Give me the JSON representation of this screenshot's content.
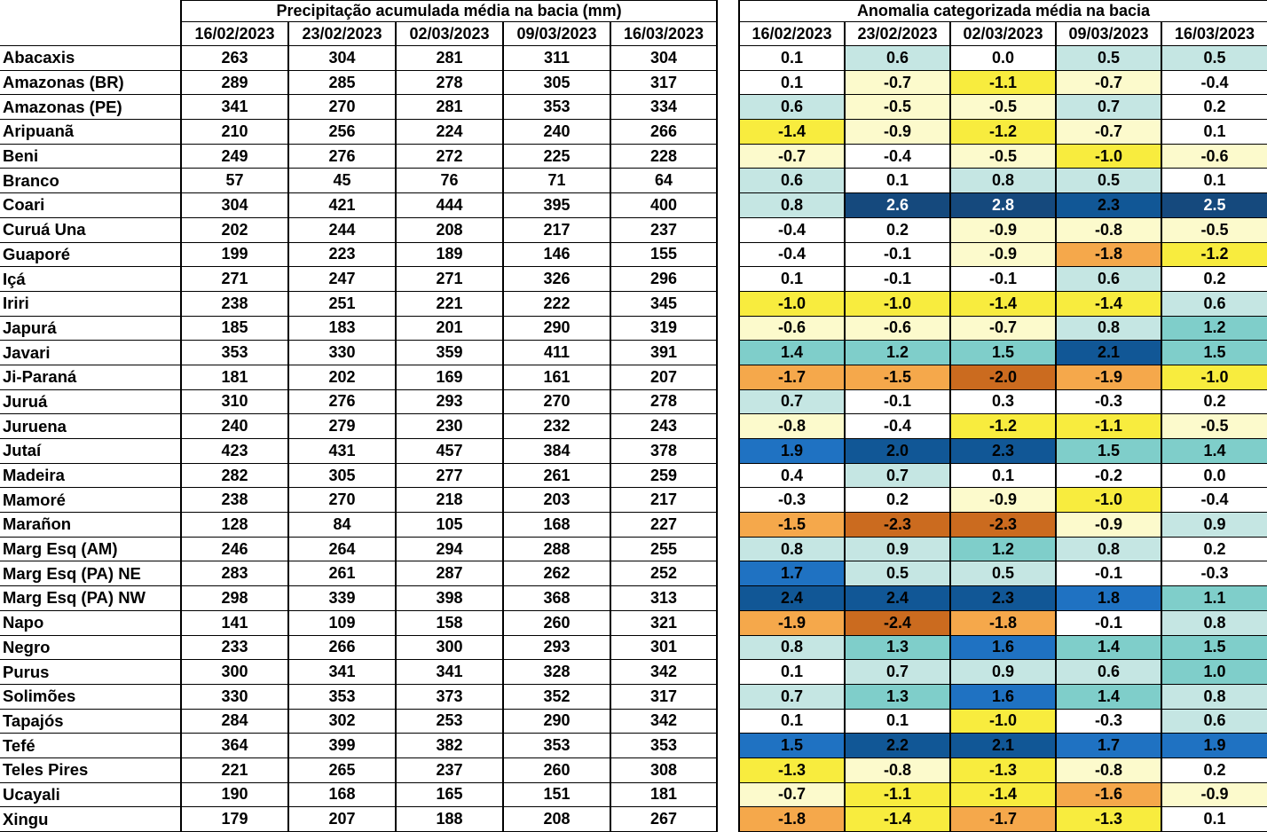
{
  "chart_data": {
    "type": "heatmap-table",
    "columns": [
      "16/02/2023",
      "23/02/2023",
      "02/03/2023",
      "09/03/2023",
      "16/03/2023"
    ],
    "left": {
      "title": "Precipitação acumulada média na bacia (mm)",
      "unit": "mm"
    },
    "right": {
      "title": "Anomalia categorizada média na bacia"
    },
    "rows": [
      {
        "basin": "Abacaxis",
        "precip": [
          263,
          304,
          281,
          311,
          304
        ],
        "anomaly": [
          0.1,
          0.6,
          0.0,
          0.5,
          0.5
        ],
        "anomaly_cats": [
          "c0",
          "p1",
          "c0",
          "p1",
          "p1"
        ]
      },
      {
        "basin": "Amazonas (BR)",
        "precip": [
          289,
          285,
          278,
          305,
          317
        ],
        "anomaly": [
          0.1,
          -0.7,
          -1.1,
          -0.7,
          -0.4
        ],
        "anomaly_cats": [
          "c0",
          "n1",
          "n2",
          "n1",
          "c0"
        ]
      },
      {
        "basin": "Amazonas (PE)",
        "precip": [
          341,
          270,
          281,
          353,
          334
        ],
        "anomaly": [
          0.6,
          -0.5,
          -0.5,
          0.7,
          0.2
        ],
        "anomaly_cats": [
          "p1",
          "n1",
          "n1",
          "p1",
          "c0"
        ]
      },
      {
        "basin": "Aripuanã",
        "precip": [
          210,
          256,
          224,
          240,
          266
        ],
        "anomaly": [
          -1.4,
          -0.9,
          -1.2,
          -0.7,
          0.1
        ],
        "anomaly_cats": [
          "n2",
          "n1",
          "n2",
          "n1",
          "c0"
        ]
      },
      {
        "basin": "Beni",
        "precip": [
          249,
          276,
          272,
          225,
          228
        ],
        "anomaly": [
          -0.7,
          -0.4,
          -0.5,
          -1.0,
          -0.6
        ],
        "anomaly_cats": [
          "n1",
          "c0",
          "n1",
          "n2",
          "n1"
        ]
      },
      {
        "basin": "Branco",
        "precip": [
          57,
          45,
          76,
          71,
          64
        ],
        "anomaly": [
          0.6,
          0.1,
          0.8,
          0.5,
          0.1
        ],
        "anomaly_cats": [
          "p1",
          "c0",
          "p1",
          "p1",
          "c0"
        ]
      },
      {
        "basin": "Coari",
        "precip": [
          304,
          421,
          444,
          395,
          400
        ],
        "anomaly": [
          0.8,
          2.6,
          2.8,
          2.3,
          2.5
        ],
        "anomaly_cats": [
          "p1",
          "p5",
          "p5",
          "p4",
          "p5"
        ]
      },
      {
        "basin": "Curuá Una",
        "precip": [
          202,
          244,
          208,
          217,
          237
        ],
        "anomaly": [
          -0.4,
          0.2,
          -0.9,
          -0.8,
          -0.5
        ],
        "anomaly_cats": [
          "c0",
          "c0",
          "n1",
          "n1",
          "n1"
        ]
      },
      {
        "basin": "Guaporé",
        "precip": [
          199,
          223,
          189,
          146,
          155
        ],
        "anomaly": [
          -0.4,
          -0.1,
          -0.9,
          -1.8,
          -1.2
        ],
        "anomaly_cats": [
          "c0",
          "c0",
          "n1",
          "n3",
          "n2"
        ]
      },
      {
        "basin": "Içá",
        "precip": [
          271,
          247,
          271,
          326,
          296
        ],
        "anomaly": [
          0.1,
          -0.1,
          -0.1,
          0.6,
          0.2
        ],
        "anomaly_cats": [
          "c0",
          "c0",
          "c0",
          "p1",
          "c0"
        ]
      },
      {
        "basin": "Iriri",
        "precip": [
          238,
          251,
          221,
          222,
          345
        ],
        "anomaly": [
          -1.0,
          -1.0,
          -1.4,
          -1.4,
          0.6
        ],
        "anomaly_cats": [
          "n2",
          "n2",
          "n2",
          "n2",
          "p1"
        ]
      },
      {
        "basin": "Japurá",
        "precip": [
          185,
          183,
          201,
          290,
          319
        ],
        "anomaly": [
          -0.6,
          -0.6,
          -0.7,
          0.8,
          1.2
        ],
        "anomaly_cats": [
          "n1",
          "n1",
          "n1",
          "p1",
          "p2"
        ]
      },
      {
        "basin": "Javari",
        "precip": [
          353,
          330,
          359,
          411,
          391
        ],
        "anomaly": [
          1.4,
          1.2,
          1.5,
          2.1,
          1.5
        ],
        "anomaly_cats": [
          "p2",
          "p2",
          "p2",
          "p4",
          "p2"
        ]
      },
      {
        "basin": "Ji-Paraná",
        "precip": [
          181,
          202,
          169,
          161,
          207
        ],
        "anomaly": [
          -1.7,
          -1.5,
          -2.0,
          -1.9,
          -1.0
        ],
        "anomaly_cats": [
          "n3",
          "n3",
          "n4",
          "n3",
          "n2"
        ]
      },
      {
        "basin": "Juruá",
        "precip": [
          310,
          276,
          293,
          270,
          278
        ],
        "anomaly": [
          0.7,
          -0.1,
          0.3,
          -0.3,
          0.2
        ],
        "anomaly_cats": [
          "p1",
          "c0",
          "c0",
          "c0",
          "c0"
        ]
      },
      {
        "basin": "Juruena",
        "precip": [
          240,
          279,
          230,
          232,
          243
        ],
        "anomaly": [
          -0.8,
          -0.4,
          -1.2,
          -1.1,
          -0.5
        ],
        "anomaly_cats": [
          "n1",
          "c0",
          "n2",
          "n2",
          "n1"
        ]
      },
      {
        "basin": "Jutaí",
        "precip": [
          423,
          431,
          457,
          384,
          378
        ],
        "anomaly": [
          1.9,
          2.0,
          2.3,
          1.5,
          1.4
        ],
        "anomaly_cats": [
          "p3",
          "p4",
          "p4",
          "p2",
          "p2"
        ]
      },
      {
        "basin": "Madeira",
        "precip": [
          282,
          305,
          277,
          261,
          259
        ],
        "anomaly": [
          0.4,
          0.7,
          0.1,
          -0.2,
          0.0
        ],
        "anomaly_cats": [
          "c0",
          "p1",
          "c0",
          "c0",
          "c0"
        ]
      },
      {
        "basin": "Mamoré",
        "precip": [
          238,
          270,
          218,
          203,
          217
        ],
        "anomaly": [
          -0.3,
          0.2,
          -0.9,
          -1.0,
          -0.4
        ],
        "anomaly_cats": [
          "c0",
          "c0",
          "n1",
          "n2",
          "c0"
        ]
      },
      {
        "basin": "Marañon",
        "precip": [
          128,
          84,
          105,
          168,
          227
        ],
        "anomaly": [
          -1.5,
          -2.3,
          -2.3,
          -0.9,
          0.9
        ],
        "anomaly_cats": [
          "n3",
          "n4",
          "n4",
          "n1",
          "p1"
        ]
      },
      {
        "basin": "Marg Esq (AM)",
        "precip": [
          246,
          264,
          294,
          288,
          255
        ],
        "anomaly": [
          0.8,
          0.9,
          1.2,
          0.8,
          0.2
        ],
        "anomaly_cats": [
          "p1",
          "p1",
          "p2",
          "p1",
          "c0"
        ]
      },
      {
        "basin": "Marg Esq (PA) NE",
        "precip": [
          283,
          261,
          287,
          262,
          252
        ],
        "anomaly": [
          1.7,
          0.5,
          0.5,
          -0.1,
          -0.3
        ],
        "anomaly_cats": [
          "p3",
          "p1",
          "p1",
          "c0",
          "c0"
        ]
      },
      {
        "basin": "Marg Esq (PA) NW",
        "precip": [
          298,
          339,
          398,
          368,
          313
        ],
        "anomaly": [
          2.4,
          2.4,
          2.3,
          1.8,
          1.1
        ],
        "anomaly_cats": [
          "p4",
          "p4",
          "p4",
          "p3",
          "p2"
        ]
      },
      {
        "basin": "Napo",
        "precip": [
          141,
          109,
          158,
          260,
          321
        ],
        "anomaly": [
          -1.9,
          -2.4,
          -1.8,
          -0.1,
          0.8
        ],
        "anomaly_cats": [
          "n3",
          "n4",
          "n3",
          "c0",
          "p1"
        ]
      },
      {
        "basin": "Negro",
        "precip": [
          233,
          266,
          300,
          293,
          301
        ],
        "anomaly": [
          0.8,
          1.3,
          1.6,
          1.4,
          1.5
        ],
        "anomaly_cats": [
          "p1",
          "p2",
          "p3",
          "p2",
          "p2"
        ]
      },
      {
        "basin": "Purus",
        "precip": [
          300,
          341,
          341,
          328,
          342
        ],
        "anomaly": [
          0.1,
          0.7,
          0.9,
          0.6,
          1.0
        ],
        "anomaly_cats": [
          "c0",
          "p1",
          "p1",
          "p1",
          "p2"
        ]
      },
      {
        "basin": "Solimões",
        "precip": [
          330,
          353,
          373,
          352,
          317
        ],
        "anomaly": [
          0.7,
          1.3,
          1.6,
          1.4,
          0.8
        ],
        "anomaly_cats": [
          "p1",
          "p2",
          "p3",
          "p2",
          "p1"
        ]
      },
      {
        "basin": "Tapajós",
        "precip": [
          284,
          302,
          253,
          290,
          342
        ],
        "anomaly": [
          0.1,
          0.1,
          -1.0,
          -0.3,
          0.6
        ],
        "anomaly_cats": [
          "c0",
          "c0",
          "n2",
          "c0",
          "p1"
        ]
      },
      {
        "basin": "Tefé",
        "precip": [
          364,
          399,
          382,
          353,
          353
        ],
        "anomaly": [
          1.5,
          2.2,
          2.1,
          1.7,
          1.9
        ],
        "anomaly_cats": [
          "p3",
          "p4",
          "p4",
          "p3",
          "p3"
        ]
      },
      {
        "basin": "Teles Pires",
        "precip": [
          221,
          265,
          237,
          260,
          308
        ],
        "anomaly": [
          -1.3,
          -0.8,
          -1.3,
          -0.8,
          0.2
        ],
        "anomaly_cats": [
          "n2",
          "n1",
          "n2",
          "n1",
          "c0"
        ]
      },
      {
        "basin": "Ucayali",
        "precip": [
          190,
          168,
          165,
          151,
          181
        ],
        "anomaly": [
          -0.7,
          -1.1,
          -1.4,
          -1.6,
          -0.9
        ],
        "anomaly_cats": [
          "n1",
          "n2",
          "n2",
          "n3",
          "n1"
        ]
      },
      {
        "basin": "Xingu",
        "precip": [
          179,
          207,
          188,
          208,
          267
        ],
        "anomaly": [
          -1.8,
          -1.4,
          -1.7,
          -1.3,
          0.1
        ],
        "anomaly_cats": [
          "n3",
          "n2",
          "n3",
          "n2",
          "c0"
        ]
      }
    ]
  },
  "colors": {
    "grid": "#000000",
    "text": "#000000",
    "text_on_dark": "#FFFFFF",
    "categories": {
      "c0": "#FFFFFF",
      "p1": "#C5E6E3",
      "p2": "#7FCECA",
      "p3": "#1F72C2",
      "p4": "#115796",
      "p5": "#15497D",
      "n1": "#FCFACC",
      "n2": "#F8EC3E",
      "n3": "#F5A84B",
      "n4": "#CB6B1F"
    }
  }
}
